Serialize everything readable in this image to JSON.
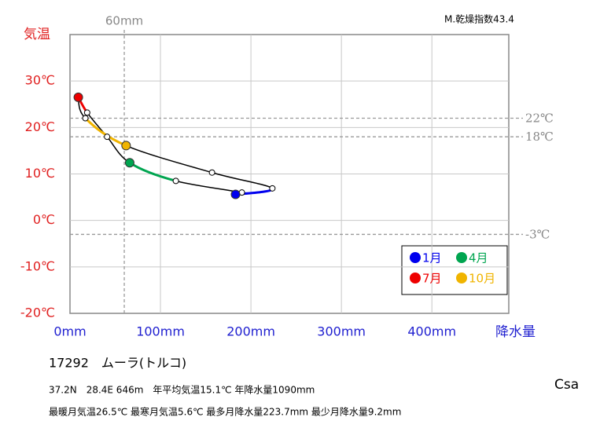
{
  "chart_data": {
    "type": "climograph",
    "station": "17292　ムーラ(トルコ)",
    "climate_class": "Csa",
    "aridity": "M.乾燥指数43.4",
    "info_lines": [
      "37.2N　28.4E 646m　年平均気温15.1℃ 年降水量1090mm",
      "最暖月気温26.5℃ 最寒月気温5.6℃ 最多月降水量223.7mm 最少月降水量9.2mm"
    ],
    "ylabel": "気温",
    "xlabel": "降水量",
    "x": [
      183,
      190,
      117,
      66,
      41,
      19,
      9.2,
      9,
      17,
      62,
      157,
      223.7
    ],
    "values": [
      5.6,
      6.0,
      8.5,
      12.4,
      18.0,
      23.2,
      26.5,
      26.3,
      22.0,
      16.1,
      10.3,
      6.9
    ],
    "legend": [
      {
        "name": "1月",
        "color": "#0000ee"
      },
      {
        "name": "4月",
        "color": "#00a550"
      },
      {
        "name": "7月",
        "color": "#ee0000"
      },
      {
        "name": "10月",
        "color": "#f0b400"
      }
    ],
    "xlim": [
      0,
      485
    ],
    "ylim": [
      -20,
      40
    ],
    "xticks": [
      {
        "value": 0,
        "label": "0mm"
      },
      {
        "value": 100,
        "label": "100mm"
      },
      {
        "value": 200,
        "label": "200mm"
      },
      {
        "value": 300,
        "label": "300mm"
      },
      {
        "value": 400,
        "label": "400mm"
      }
    ],
    "yticks": [
      {
        "value": -20,
        "label": "-20℃"
      },
      {
        "value": -10,
        "label": "-10℃"
      },
      {
        "value": 0,
        "label": "0℃"
      },
      {
        "value": 10,
        "label": "10℃"
      },
      {
        "value": 20,
        "label": "20℃"
      },
      {
        "value": 30,
        "label": "30℃"
      }
    ],
    "ref_lines_y": [
      {
        "value": 22,
        "label": "22℃"
      },
      {
        "value": 18,
        "label": "18℃"
      },
      {
        "value": -3,
        "label": "-3℃"
      }
    ],
    "ref_lines_x": [
      {
        "value": 60,
        "label": "60mm"
      }
    ],
    "grid": true
  }
}
